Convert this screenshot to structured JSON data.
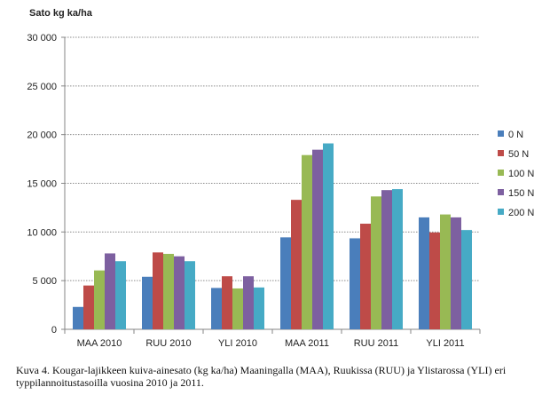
{
  "chart_data": {
    "type": "bar",
    "ylabel": "Sato kg ka/ha",
    "xlabel": "",
    "ylim": [
      0,
      30000
    ],
    "yticks": [
      {
        "value": 0,
        "label": "0"
      },
      {
        "value": 5000,
        "label": "5 000"
      },
      {
        "value": 10000,
        "label": "10 000"
      },
      {
        "value": 15000,
        "label": "15 000"
      },
      {
        "value": 20000,
        "label": "20 000"
      },
      {
        "value": 25000,
        "label": "25 000"
      },
      {
        "value": 30000,
        "label": "30 000"
      }
    ],
    "grid": true,
    "legend_position": "right",
    "categories": [
      "MAA 2010",
      "RUU 2010",
      "YLI 2010",
      "MAA 2011",
      "RUU 2011",
      "YLI 2011"
    ],
    "series": [
      {
        "name": "0 N",
        "color": "#4a7ebb",
        "values": [
          2300,
          5400,
          4250,
          9450,
          9350,
          11500
        ]
      },
      {
        "name": "50 N",
        "color": "#be4b48",
        "values": [
          4500,
          7900,
          5450,
          13300,
          10850,
          9950
        ]
      },
      {
        "name": "100 N",
        "color": "#98b954",
        "values": [
          6050,
          7750,
          4200,
          17900,
          13650,
          11800
        ]
      },
      {
        "name": "150 N",
        "color": "#7d60a0",
        "values": [
          7800,
          7500,
          5450,
          18450,
          14300,
          11500
        ]
      },
      {
        "name": "200 N",
        "color": "#46aac5",
        "values": [
          7000,
          7000,
          4300,
          19100,
          14400,
          10200
        ]
      }
    ]
  },
  "caption": {
    "line1": "Kuva 4. Kougar-lajikkeen kuiva-ainesato (kg ka/ha) Maaningalla (MAA), Ruukissa (RUU) ja Ylistarossa (YLI) eri",
    "line2": "typpilannoitustasoilla vuosina 2010 ja 2011."
  }
}
